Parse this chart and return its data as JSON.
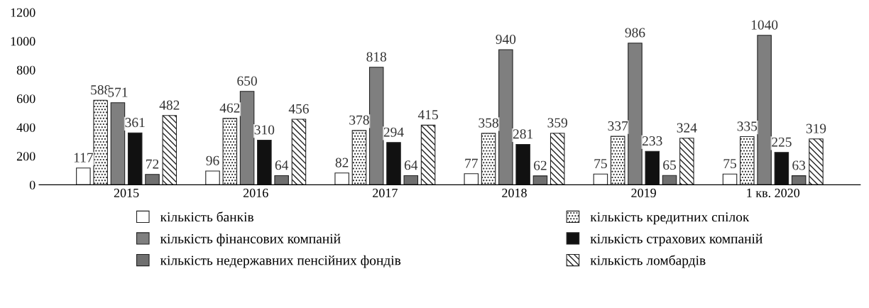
{
  "chart_data": {
    "type": "bar",
    "categories": [
      "2015",
      "2016",
      "2017",
      "2018",
      "2019",
      "1 кв. 2020"
    ],
    "series": [
      {
        "name": "кількість банків",
        "color": "#ffffff",
        "values": [
          117,
          96,
          82,
          77,
          75,
          75
        ]
      },
      {
        "name": "кількість кредитних спілок",
        "color": "#222222",
        "values": [
          588,
          462,
          378,
          358,
          337,
          335
        ]
      },
      {
        "name": "кількість фінансових компаній",
        "color": "#7f7f7f",
        "values": [
          571,
          650,
          818,
          940,
          986,
          1040
        ]
      },
      {
        "name": "кількість страхових компаній",
        "color": "#111111",
        "values": [
          361,
          310,
          294,
          281,
          233,
          225
        ]
      },
      {
        "name": "кількість недержавних пенсійних фондів",
        "color": "#6f6f6f",
        "values": [
          72,
          64,
          64,
          62,
          65,
          63
        ]
      },
      {
        "name": "кількість ломбардів",
        "color": "#222222",
        "values": [
          482,
          456,
          415,
          359,
          324,
          319
        ]
      }
    ],
    "ylim": [
      0,
      1200
    ],
    "yticks": [
      0,
      200,
      400,
      600,
      800,
      1000,
      1200
    ],
    "data_labels": true,
    "legend": "bottom",
    "grid": false
  }
}
